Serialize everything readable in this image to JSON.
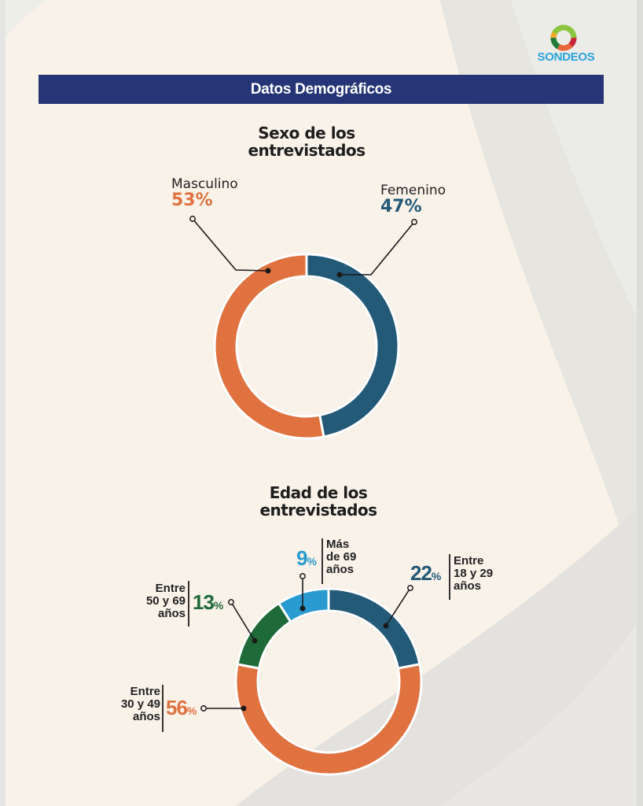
{
  "brand": {
    "name": "SONDEOS",
    "colors": {
      "blue": "#2aa3dd",
      "green": "#8cc63f",
      "orange": "#e8673a",
      "red": "#c8253b",
      "darkgreen": "#1f7a3c"
    }
  },
  "header": {
    "title": "Datos Demográficos",
    "background": "#253575"
  },
  "colors": {
    "orange": "#e07240",
    "darkblue": "#235a78",
    "green": "#1f6a39",
    "lightblue": "#2a9bd0",
    "background": "#f8f2e9"
  },
  "chart_data": [
    {
      "type": "pie",
      "donut": true,
      "title": "Sexo de los entrevistados",
      "title_lines": [
        "Sexo de los",
        "entrevistados"
      ],
      "start": "top",
      "direction": "clockwise",
      "categories": [
        "Femenino",
        "Masculino"
      ],
      "values": [
        47,
        53
      ],
      "value_labels": [
        "47%",
        "53%"
      ],
      "colors": [
        "#235a78",
        "#e07240"
      ]
    },
    {
      "type": "pie",
      "donut": true,
      "title": "Edad de los entrevistados",
      "title_lines": [
        "Edad de los",
        "entrevistados"
      ],
      "start": "top",
      "direction": "clockwise",
      "categories": [
        "Entre 18 y 29 años",
        "Entre 30 y 49 años",
        "Entre 50 y 69 años",
        "Más de 69 años"
      ],
      "label_lines": [
        [
          "Entre",
          "18 y 29",
          "años"
        ],
        [
          "Entre",
          "30 y 49",
          "años"
        ],
        [
          "Entre",
          "50 y 69",
          "años"
        ],
        [
          "Más",
          "de 69",
          "años"
        ]
      ],
      "values": [
        22,
        56,
        13,
        9
      ],
      "value_numbers": [
        "22",
        "56",
        "13",
        "9"
      ],
      "percent_sign": "%",
      "colors": [
        "#235a78",
        "#e07240",
        "#1f6a39",
        "#2a9bd0"
      ]
    }
  ]
}
